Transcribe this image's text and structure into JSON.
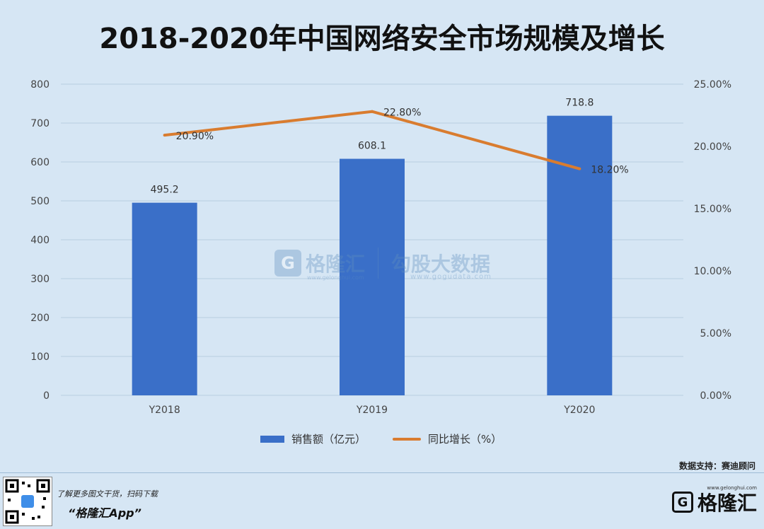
{
  "title": "2018-2020年中国网络安全市场规模及增长",
  "chart_data": {
    "type": "bar",
    "categories": [
      "Y2018",
      "Y2019",
      "Y2020"
    ],
    "series": [
      {
        "name": "销售额（亿元）",
        "type": "bar",
        "axis": "left",
        "values": [
          495.2,
          608.1,
          718.8
        ],
        "labels": [
          "495.2",
          "608.1",
          "718.8"
        ],
        "color": "#3a6fc8"
      },
      {
        "name": "同比增长（%）",
        "type": "line",
        "axis": "right",
        "values": [
          20.9,
          22.8,
          18.2
        ],
        "labels": [
          "20.90%",
          "22.80%",
          "18.20%"
        ],
        "color": "#d97c2f"
      }
    ],
    "y_left": {
      "ylim": [
        0,
        800
      ],
      "ticks": [
        "0",
        "100",
        "200",
        "300",
        "400",
        "500",
        "600",
        "700",
        "800"
      ]
    },
    "y_right": {
      "ylim": [
        0,
        25
      ],
      "ticks": [
        "0.00%",
        "5.00%",
        "10.00%",
        "15.00%",
        "20.00%",
        "25.00%"
      ]
    },
    "grid": true,
    "legend_position": "bottom"
  },
  "source": "数据支持：赛迪顾问",
  "watermark": {
    "brand": "格隆汇",
    "brand_url": "www.gelonghui.com",
    "product": "勾股大数据",
    "product_url": "www.gogudata.com"
  },
  "footer": {
    "promo": "了解更多图文干货，扫码下载",
    "app": "“格隆汇App”",
    "brand": "格隆汇",
    "brand_url": "www.gelonghui.com"
  },
  "colors": {
    "background": "#d6e6f4",
    "bar": "#3a6fc8",
    "line": "#d97c2f",
    "grid": "#b8cde0"
  }
}
